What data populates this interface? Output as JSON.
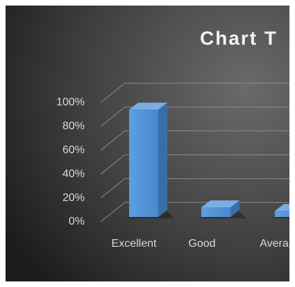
{
  "chart_data": {
    "type": "bar3d",
    "title": "Chart T",
    "categories": [
      "Excellent",
      "Good",
      "Avera"
    ],
    "values": [
      89,
      8,
      5
    ],
    "color": "#5b9bd5",
    "ylim": [
      0,
      100
    ],
    "yticks": [
      {
        "value": 0,
        "label": "0%"
      },
      {
        "value": 20,
        "label": "20%"
      },
      {
        "value": 40,
        "label": "40%"
      },
      {
        "value": 60,
        "label": "60%"
      },
      {
        "value": 80,
        "label": "80%"
      },
      {
        "value": 100,
        "label": "100%"
      }
    ],
    "grid": true
  }
}
